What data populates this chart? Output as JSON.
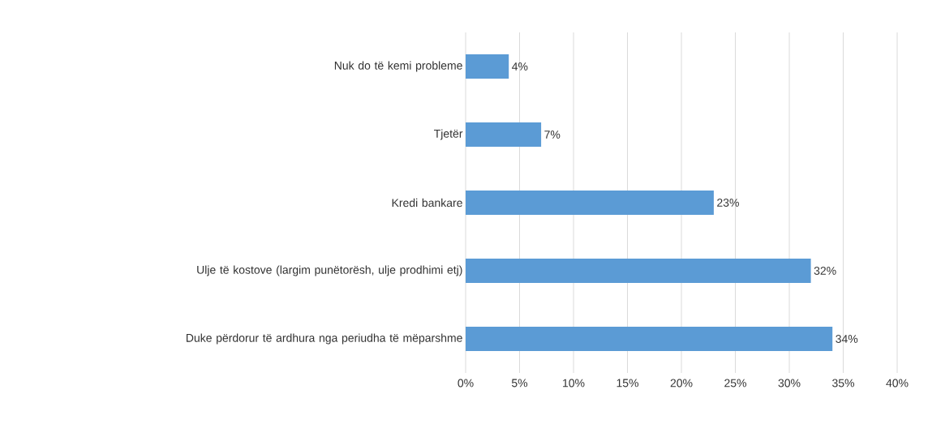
{
  "chart_data": {
    "type": "bar",
    "orientation": "horizontal",
    "categories": [
      "Nuk do të kemi probleme",
      "Tjetër",
      "Kredi bankare",
      "Ulje të kostove (largim punëtorësh, ulje prodhimi etj)",
      "Duke përdorur të ardhura nga periudha të mëparshme"
    ],
    "values": [
      4,
      7,
      23,
      32,
      34
    ],
    "value_labels": [
      "4%",
      "7%",
      "23%",
      "32%",
      "34%"
    ],
    "color": "#5b9bd5",
    "xlim": [
      0,
      40
    ],
    "xticks": [
      {
        "value": 0,
        "label": "0%"
      },
      {
        "value": 5,
        "label": "5%"
      },
      {
        "value": 10,
        "label": "10%"
      },
      {
        "value": 15,
        "label": "15%"
      },
      {
        "value": 20,
        "label": "20%"
      },
      {
        "value": 25,
        "label": "25%"
      },
      {
        "value": 30,
        "label": "30%"
      },
      {
        "value": 35,
        "label": "35%"
      },
      {
        "value": 40,
        "label": "40%"
      }
    ],
    "grid": "x"
  }
}
